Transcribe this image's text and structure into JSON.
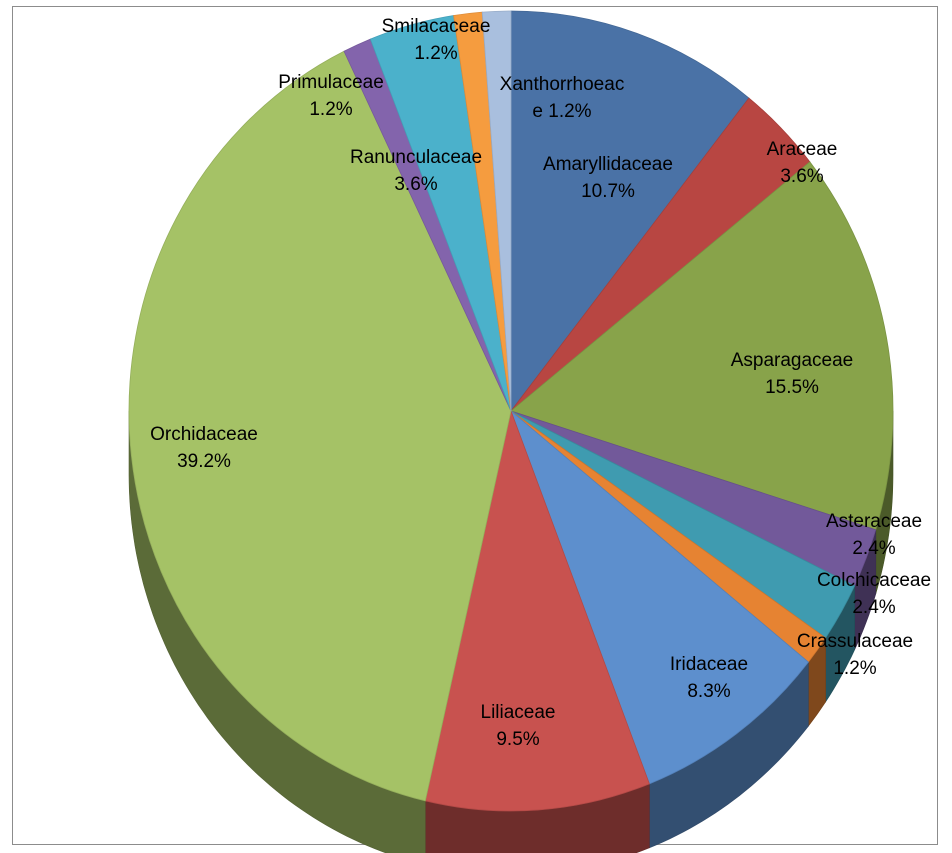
{
  "chart_data": {
    "type": "pie",
    "style": "3d",
    "legend": "none",
    "slices": [
      {
        "name": "Amaryllidaceae",
        "label_lines": [
          "Amaryllidaceae",
          "10.7%"
        ],
        "value": 10.7,
        "color": "#4a72a6"
      },
      {
        "name": "Araceae",
        "label_lines": [
          "Araceae",
          "3.6%"
        ],
        "value": 3.6,
        "color": "#b84642"
      },
      {
        "name": "Asparagaceae",
        "label_lines": [
          "Asparagaceae",
          "15.5%"
        ],
        "value": 15.5,
        "color": "#88a34a"
      },
      {
        "name": "Asteraceae",
        "label_lines": [
          "Asteraceae",
          "2.4%"
        ],
        "value": 2.4,
        "color": "#72599a"
      },
      {
        "name": "Colchicaceae",
        "label_lines": [
          "Colchicaceae",
          "2.4%"
        ],
        "value": 2.4,
        "color": "#3f9bb0"
      },
      {
        "name": "Crassulaceae",
        "label_lines": [
          "Crassulaceae",
          "1.2%"
        ],
        "value": 1.2,
        "color": "#e68332"
      },
      {
        "name": "Iridaceae",
        "label_lines": [
          "Iridaceae",
          "8.3%"
        ],
        "value": 8.3,
        "color": "#5d8fcd"
      },
      {
        "name": "Liliaceae",
        "label_lines": [
          "Liliaceae",
          "9.5%"
        ],
        "value": 9.5,
        "color": "#c8524f"
      },
      {
        "name": "Orchidaceae",
        "label_lines": [
          "Orchidaceae",
          "39.2%"
        ],
        "value": 39.2,
        "color": "#a5c266"
      },
      {
        "name": "Primulaceae",
        "label_lines": [
          "Primulaceae",
          "1.2%"
        ],
        "value": 1.2,
        "color": "#8364ac"
      },
      {
        "name": "Ranunculaceae",
        "label_lines": [
          "Ranunculaceae",
          "3.6%"
        ],
        "value": 3.6,
        "color": "#4bb1cb"
      },
      {
        "name": "Smilacaceae",
        "label_lines": [
          "Smilacaceae",
          "1.2%"
        ],
        "value": 1.2,
        "color": "#f59c3f"
      },
      {
        "name": "Xanthorrhoeaceae",
        "label_lines": [
          "Xanthorrhoeac",
          "e 1.2%"
        ],
        "value": 1.2,
        "color": "#a9bfde"
      }
    ]
  }
}
